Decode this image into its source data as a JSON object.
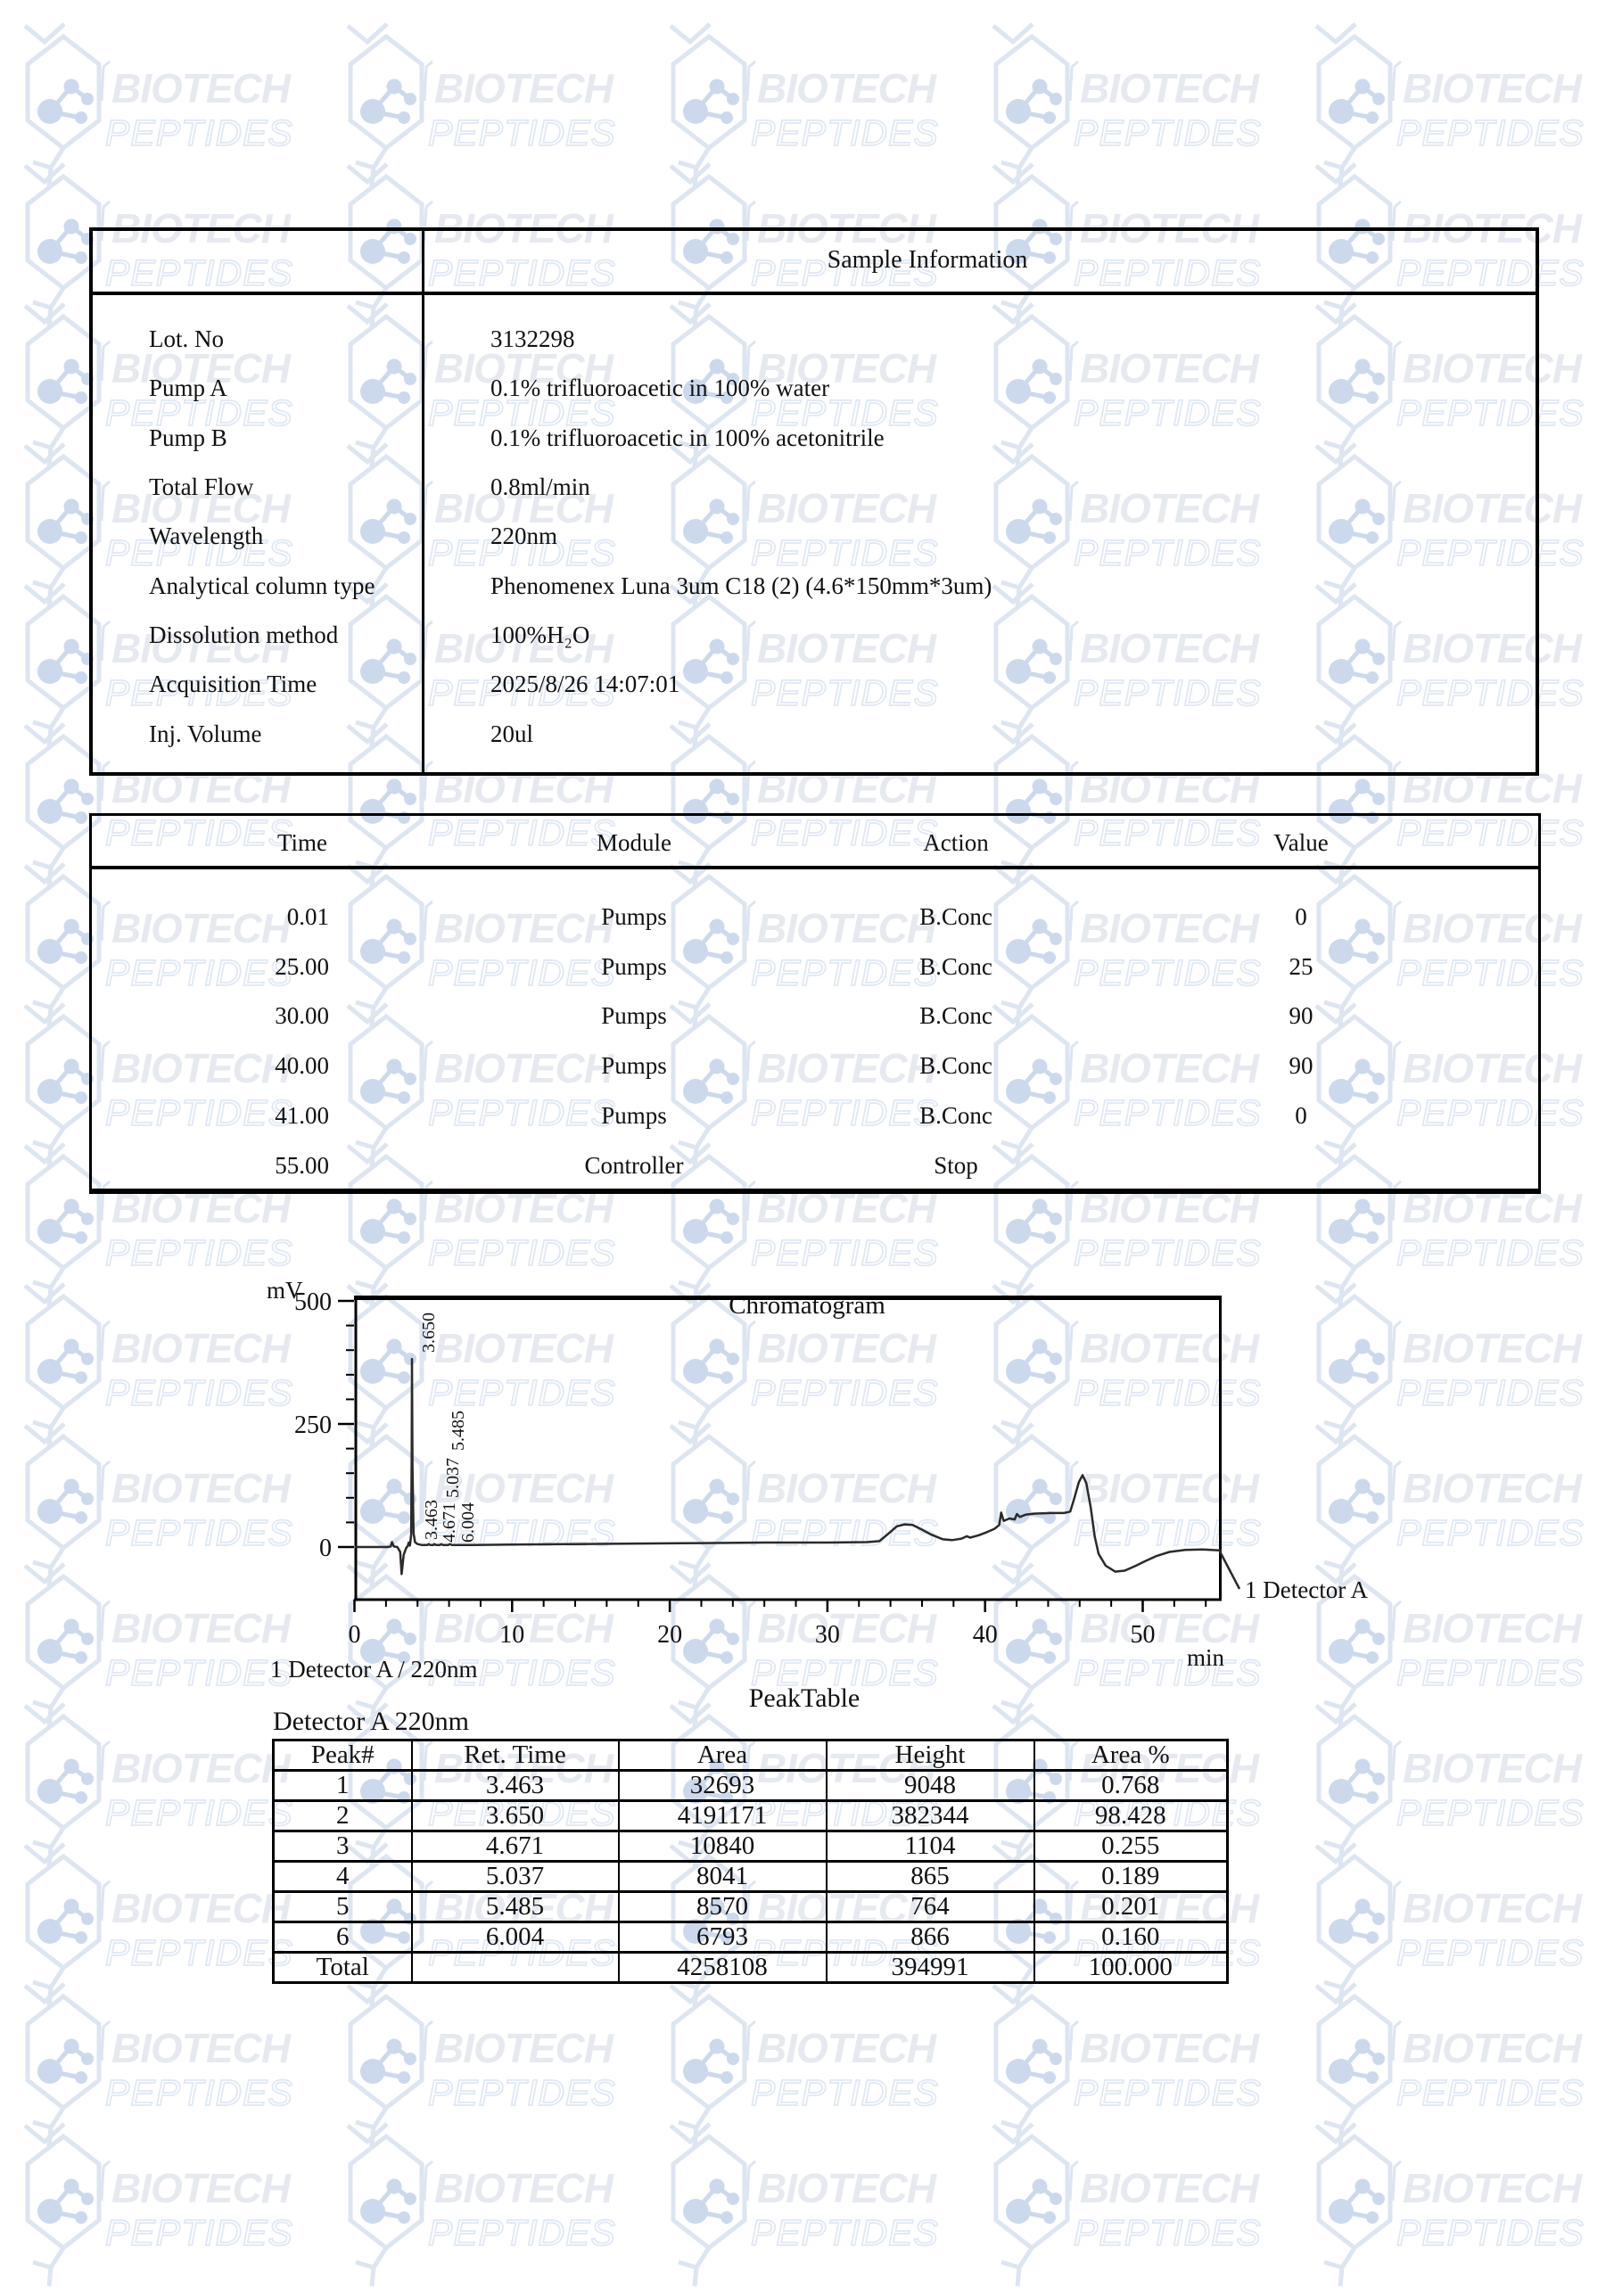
{
  "watermark": {
    "line1": "BIOTECH",
    "line2": "PEPTIDES"
  },
  "sample_info": {
    "title": "Sample Information",
    "rows": [
      {
        "label": "Lot. No",
        "value": "3132298"
      },
      {
        "label": "Pump A",
        "value": "0.1% trifluoroacetic in 100% water"
      },
      {
        "label": "Pump B",
        "value": "0.1% trifluoroacetic in 100% acetonitrile"
      },
      {
        "label": "Total Flow",
        "value": "0.8ml/min"
      },
      {
        "label": "Wavelength",
        "value": "220nm"
      },
      {
        "label": "Analytical column type",
        "value": "Phenomenex Luna 3um C18 (2) (4.6*150mm*3um)"
      },
      {
        "label": "Dissolution method",
        "value": "100%H₂O"
      },
      {
        "label": "Acquisition Time",
        "value": "2025/8/26 14:07:01"
      },
      {
        "label": "Inj. Volume",
        "value": "20ul"
      }
    ]
  },
  "program_table": {
    "headers": [
      "Time",
      "Module",
      "Action",
      "Value"
    ],
    "rows": [
      [
        "0.01",
        "Pumps",
        "B.Conc",
        "0"
      ],
      [
        "25.00",
        "Pumps",
        "B.Conc",
        "25"
      ],
      [
        "30.00",
        "Pumps",
        "B.Conc",
        "90"
      ],
      [
        "40.00",
        "Pumps",
        "B.Conc",
        "90"
      ],
      [
        "41.00",
        "Pumps",
        "B.Conc",
        "0"
      ],
      [
        "55.00",
        "Controller",
        "Stop",
        ""
      ]
    ]
  },
  "chart_data": {
    "type": "line",
    "title": "Chromatogram",
    "ylabel": "mV",
    "xlabel": "min",
    "xlim": [
      0,
      55
    ],
    "ylim": [
      -107,
      505
    ],
    "x_major_ticks": [
      0,
      10,
      20,
      30,
      40,
      50
    ],
    "x_minor_step": 2,
    "y_major_ticks": [
      0,
      250,
      500
    ],
    "y_minor_ticks": [
      50,
      100,
      150,
      200,
      300,
      350,
      400,
      450
    ],
    "grid": false,
    "legend_position": "lower-right",
    "peak_labels": [
      {
        "text": "3.463"
      },
      {
        "text": "3.650"
      },
      {
        "text": "4.671"
      },
      {
        "text": "5.037"
      },
      {
        "text": "5.485"
      },
      {
        "text": "6.004"
      }
    ],
    "annotations": {
      "detector": "1 Detector A",
      "detector_sub": "1 Detector A / 220nm"
    },
    "series": [
      {
        "name": "1 Detector A",
        "points": [
          [
            0,
            0
          ],
          [
            1.2,
            0
          ],
          [
            2.1,
            0
          ],
          [
            2.3,
            1
          ],
          [
            2.38,
            10
          ],
          [
            2.5,
            1
          ],
          [
            2.72,
            0
          ],
          [
            2.9,
            -10
          ],
          [
            2.99,
            -55
          ],
          [
            3.12,
            -16
          ],
          [
            3.28,
            -2
          ],
          [
            3.38,
            2
          ],
          [
            3.44,
            9
          ],
          [
            3.52,
            3
          ],
          [
            3.6,
            25
          ],
          [
            3.63,
            190
          ],
          [
            3.65,
            382
          ],
          [
            3.68,
            160
          ],
          [
            3.75,
            28
          ],
          [
            3.84,
            10
          ],
          [
            4.0,
            6
          ],
          [
            4.3,
            4
          ],
          [
            4.62,
            4
          ],
          [
            4.7,
            6
          ],
          [
            4.82,
            4
          ],
          [
            5.0,
            4
          ],
          [
            5.07,
            6
          ],
          [
            5.18,
            4
          ],
          [
            5.42,
            4
          ],
          [
            5.5,
            6
          ],
          [
            5.62,
            4
          ],
          [
            5.95,
            4
          ],
          [
            6.03,
            6
          ],
          [
            6.2,
            4
          ],
          [
            7.5,
            4
          ],
          [
            10,
            5
          ],
          [
            14,
            6
          ],
          [
            18,
            7
          ],
          [
            22,
            8
          ],
          [
            26,
            9
          ],
          [
            30,
            9
          ],
          [
            32.5,
            10
          ],
          [
            33.3,
            12
          ],
          [
            33.9,
            28
          ],
          [
            34.4,
            42
          ],
          [
            34.9,
            46
          ],
          [
            35.4,
            45
          ],
          [
            35.9,
            37
          ],
          [
            36.6,
            25
          ],
          [
            37.3,
            16
          ],
          [
            37.9,
            14
          ],
          [
            38.5,
            17
          ],
          [
            38.85,
            22
          ],
          [
            39.05,
            19
          ],
          [
            39.6,
            24
          ],
          [
            40.1,
            30
          ],
          [
            40.6,
            37
          ],
          [
            40.9,
            45
          ],
          [
            41.02,
            70
          ],
          [
            41.18,
            53
          ],
          [
            41.55,
            58
          ],
          [
            41.88,
            56
          ],
          [
            42.02,
            67
          ],
          [
            42.2,
            61
          ],
          [
            42.6,
            66
          ],
          [
            43.2,
            68
          ],
          [
            44.2,
            69
          ],
          [
            45.0,
            69
          ],
          [
            45.4,
            72
          ],
          [
            45.65,
            98
          ],
          [
            45.95,
            132
          ],
          [
            46.18,
            146
          ],
          [
            46.42,
            130
          ],
          [
            46.7,
            80
          ],
          [
            46.95,
            22
          ],
          [
            47.2,
            -14
          ],
          [
            47.65,
            -38
          ],
          [
            48.25,
            -50
          ],
          [
            48.85,
            -48
          ],
          [
            49.5,
            -39
          ],
          [
            50.2,
            -28
          ],
          [
            50.9,
            -18
          ],
          [
            51.7,
            -10
          ],
          [
            52.7,
            -6
          ],
          [
            53.8,
            -5
          ],
          [
            55,
            -7
          ]
        ]
      }
    ]
  },
  "peak_table": {
    "title": "PeakTable",
    "subtitle": "Detector A 220nm",
    "headers": [
      "Peak#",
      "Ret. Time",
      "Area",
      "Height",
      "Area %"
    ],
    "rows": [
      [
        "1",
        "3.463",
        "32693",
        "9048",
        "0.768"
      ],
      [
        "2",
        "3.650",
        "4191171",
        "382344",
        "98.428"
      ],
      [
        "3",
        "4.671",
        "10840",
        "1104",
        "0.255"
      ],
      [
        "4",
        "5.037",
        "8041",
        "865",
        "0.189"
      ],
      [
        "5",
        "5.485",
        "8570",
        "764",
        "0.201"
      ],
      [
        "6",
        "6.004",
        "6793",
        "866",
        "0.160"
      ],
      [
        "Total",
        "",
        "4258108",
        "394991",
        "100.000"
      ]
    ]
  }
}
